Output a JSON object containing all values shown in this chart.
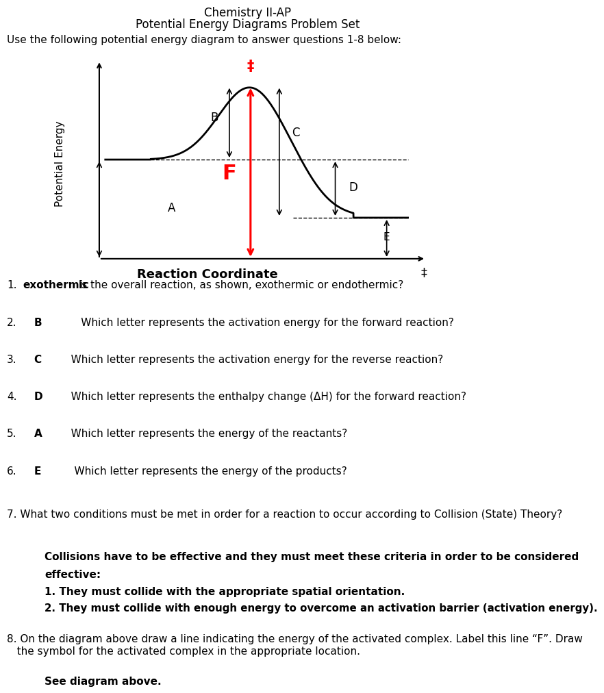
{
  "title_line1": "Chemistry II-AP",
  "title_line2": "Potential Energy Diagrams Problem Set",
  "instruction": "Use the following potential energy diagram to answer questions 1-8 below:",
  "ylabel": "Potential Energy",
  "xlabel": "Reaction Coordinate",
  "bg_color": "#ffffff",
  "curve_color": "#000000",
  "arrow_color": "#ff0000",
  "reactant_energy": 0.52,
  "product_energy": 0.18,
  "peak_energy": 0.95,
  "q7_answer_line1": "Collisions have to be effective and they must meet these criteria in order to be considered",
  "q7_answer_line2": "effective:",
  "q7_answer_line3": "1. They must collide with the appropriate spatial orientation.",
  "q7_answer_line4": "2. They must collide with enough energy to overcome an activation barrier (activation energy).",
  "q8_text": "8. On the diagram above draw a line indicating the energy of the activated complex. Label this line “F”. Draw\n   the symbol for the activated complex in the appropriate location.",
  "q8_answer": "See diagram above."
}
